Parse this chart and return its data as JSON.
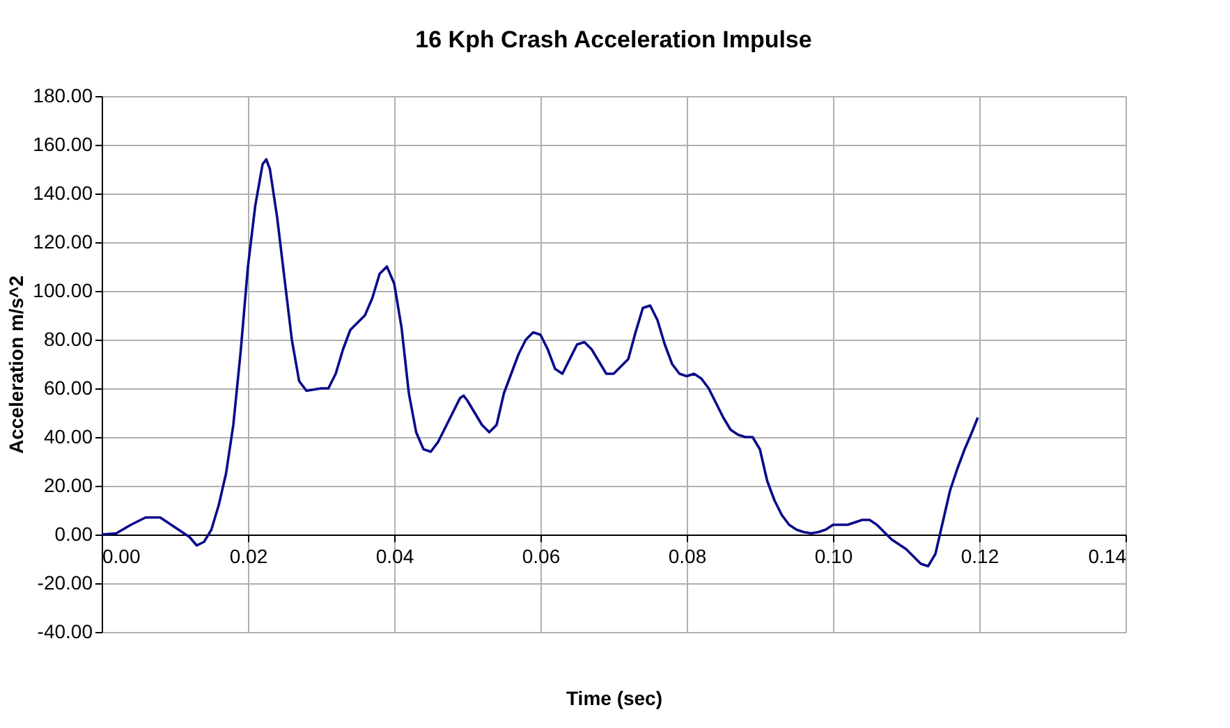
{
  "chart_data": {
    "type": "line",
    "title": "16 Kph Crash Acceleration Impulse",
    "xlabel": "Time (sec)",
    "ylabel": "Acceleration m/s^2",
    "xlim": [
      0,
      0.14
    ],
    "ylim": [
      -40,
      180
    ],
    "xticks": [
      {
        "value": 0,
        "label": "0.00"
      },
      {
        "value": 0.02,
        "label": "0.02"
      },
      {
        "value": 0.04,
        "label": "0.04"
      },
      {
        "value": 0.06,
        "label": "0.06"
      },
      {
        "value": 0.08,
        "label": "0.08"
      },
      {
        "value": 0.1,
        "label": "0.10"
      },
      {
        "value": 0.12,
        "label": "0.12"
      },
      {
        "value": 0.14,
        "label": "0.14"
      }
    ],
    "yticks": [
      {
        "value": -40,
        "label": "-40.00"
      },
      {
        "value": -20,
        "label": "-20.00"
      },
      {
        "value": 0,
        "label": "0.00"
      },
      {
        "value": 20,
        "label": "20.00"
      },
      {
        "value": 40,
        "label": "40.00"
      },
      {
        "value": 60,
        "label": "60.00"
      },
      {
        "value": 80,
        "label": "80.00"
      },
      {
        "value": 100,
        "label": "100.00"
      },
      {
        "value": 120,
        "label": "120.00"
      },
      {
        "value": 140,
        "label": "140.00"
      },
      {
        "value": 160,
        "label": "160.00"
      },
      {
        "value": 180,
        "label": "180.00"
      }
    ],
    "grid": true,
    "marker": "none",
    "line_style": "solid",
    "x": [
      0,
      0.002,
      0.004,
      0.006,
      0.008,
      0.01,
      0.012,
      0.013,
      0.014,
      0.015,
      0.016,
      0.017,
      0.018,
      0.019,
      0.02,
      0.021,
      0.022,
      0.0225,
      0.023,
      0.024,
      0.025,
      0.026,
      0.027,
      0.028,
      0.03,
      0.031,
      0.032,
      0.033,
      0.034,
      0.036,
      0.037,
      0.038,
      0.039,
      0.04,
      0.041,
      0.042,
      0.043,
      0.044,
      0.045,
      0.046,
      0.048,
      0.049,
      0.0495,
      0.05,
      0.052,
      0.053,
      0.054,
      0.055,
      0.057,
      0.058,
      0.059,
      0.06,
      0.061,
      0.062,
      0.063,
      0.064,
      0.065,
      0.066,
      0.067,
      0.068,
      0.069,
      0.07,
      0.071,
      0.072,
      0.073,
      0.074,
      0.075,
      0.076,
      0.077,
      0.078,
      0.079,
      0.08,
      0.081,
      0.082,
      0.083,
      0.084,
      0.085,
      0.086,
      0.087,
      0.088,
      0.089,
      0.09,
      0.091,
      0.092,
      0.093,
      0.094,
      0.095,
      0.096,
      0.097,
      0.098,
      0.099,
      0.1,
      0.101,
      0.102,
      0.103,
      0.104,
      0.105,
      0.106,
      0.107,
      0.108,
      0.109,
      0.11,
      0.111,
      0.112,
      0.113,
      0.114,
      0.115,
      0.116,
      0.117,
      0.118,
      0.119,
      0.1198
    ],
    "series": [
      {
        "color": "#0a0a8c",
        "values": [
          0,
          0.5,
          4,
          7,
          7,
          3,
          -1,
          -4.5,
          -3,
          2,
          12,
          25,
          45,
          75,
          110,
          135,
          152,
          154,
          150,
          130,
          105,
          80,
          63,
          59,
          60,
          60,
          66,
          76,
          84,
          90,
          97,
          107,
          110,
          103,
          85,
          58,
          42,
          35,
          34,
          38,
          50,
          56,
          57,
          55,
          45,
          42,
          45,
          58,
          74,
          80,
          83,
          82,
          76,
          68,
          66,
          72,
          78,
          79,
          76,
          71,
          66,
          66,
          69,
          72,
          83,
          93,
          94,
          88,
          78,
          70,
          66,
          65,
          66,
          64,
          60,
          54,
          48,
          43,
          41,
          40,
          40,
          35,
          22,
          14,
          8,
          4,
          2,
          1,
          0.5,
          1,
          2,
          4,
          4,
          4,
          5,
          6,
          6,
          4,
          1,
          -2,
          -4,
          -6,
          -9,
          -12,
          -13,
          -8,
          5,
          18,
          27,
          35,
          42,
          48
        ]
      }
    ]
  }
}
